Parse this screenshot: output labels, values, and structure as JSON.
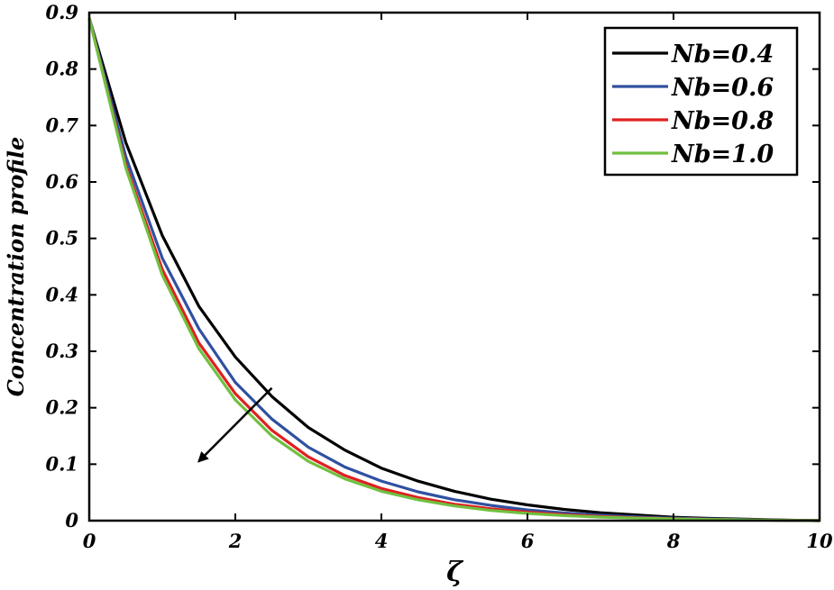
{
  "chart_data": {
    "type": "line",
    "title": "",
    "xlabel": "ζ",
    "ylabel": "Concentration profile",
    "xlim": [
      0,
      10
    ],
    "ylim": [
      0,
      0.9
    ],
    "x_ticks": [
      0,
      2,
      4,
      6,
      8,
      10
    ],
    "x_tick_labels": [
      "0",
      "2",
      "4",
      "6",
      "8",
      "10"
    ],
    "y_ticks": [
      0,
      0.1,
      0.2,
      0.3,
      0.4,
      0.5,
      0.6,
      0.7,
      0.8,
      0.9
    ],
    "y_tick_labels": [
      "0",
      "0.1",
      "0.2",
      "0.3",
      "0.4",
      "0.5",
      "0.6",
      "0.7",
      "0.8",
      "0.9"
    ],
    "grid": false,
    "legend_position": "top-right",
    "annotation": {
      "type": "arrow",
      "from": [
        2.5,
        0.235
      ],
      "to": [
        1.5,
        0.105
      ]
    },
    "series": [
      {
        "name": "Nb=0.4",
        "color": "#000000",
        "x": [
          0,
          0.5,
          1,
          1.5,
          2,
          2.5,
          3,
          3.5,
          4,
          4.5,
          5,
          5.5,
          6,
          6.5,
          7,
          7.5,
          8,
          8.5,
          9,
          9.5,
          10
        ],
        "y": [
          0.89,
          0.67,
          0.505,
          0.38,
          0.29,
          0.22,
          0.165,
          0.125,
          0.093,
          0.07,
          0.052,
          0.038,
          0.028,
          0.02,
          0.014,
          0.01,
          0.006,
          0.004,
          0.0025,
          0.001,
          0
        ]
      },
      {
        "name": "Nb=0.6",
        "color": "#3050a0",
        "x": [
          0,
          0.5,
          1,
          1.5,
          2,
          2.5,
          3,
          3.5,
          4,
          4.5,
          5,
          5.5,
          6,
          6.5,
          7,
          7.5,
          8,
          8.5,
          9,
          9.5,
          10
        ],
        "y": [
          0.89,
          0.645,
          0.465,
          0.34,
          0.245,
          0.18,
          0.13,
          0.095,
          0.07,
          0.051,
          0.037,
          0.027,
          0.019,
          0.0135,
          0.0095,
          0.0065,
          0.0045,
          0.003,
          0.0018,
          0.0008,
          0
        ]
      },
      {
        "name": "Nb=0.8",
        "color": "#e02020",
        "x": [
          0,
          0.5,
          1,
          1.5,
          2,
          2.5,
          3,
          3.5,
          4,
          4.5,
          5,
          5.5,
          6,
          6.5,
          7,
          7.5,
          8,
          8.5,
          9,
          9.5,
          10
        ],
        "y": [
          0.89,
          0.63,
          0.445,
          0.315,
          0.225,
          0.16,
          0.113,
          0.08,
          0.057,
          0.041,
          0.029,
          0.021,
          0.015,
          0.0105,
          0.0073,
          0.005,
          0.0034,
          0.0022,
          0.0013,
          0.0006,
          0
        ]
      },
      {
        "name": "Nb=1.0",
        "color": "#70c040",
        "x": [
          0,
          0.5,
          1,
          1.5,
          2,
          2.5,
          3,
          3.5,
          4,
          4.5,
          5,
          5.5,
          6,
          6.5,
          7,
          7.5,
          8,
          8.5,
          9,
          9.5,
          10
        ],
        "y": [
          0.89,
          0.625,
          0.435,
          0.305,
          0.214,
          0.15,
          0.105,
          0.074,
          0.052,
          0.037,
          0.026,
          0.018,
          0.0128,
          0.009,
          0.0063,
          0.0044,
          0.003,
          0.002,
          0.0012,
          0.0005,
          0
        ]
      }
    ]
  }
}
